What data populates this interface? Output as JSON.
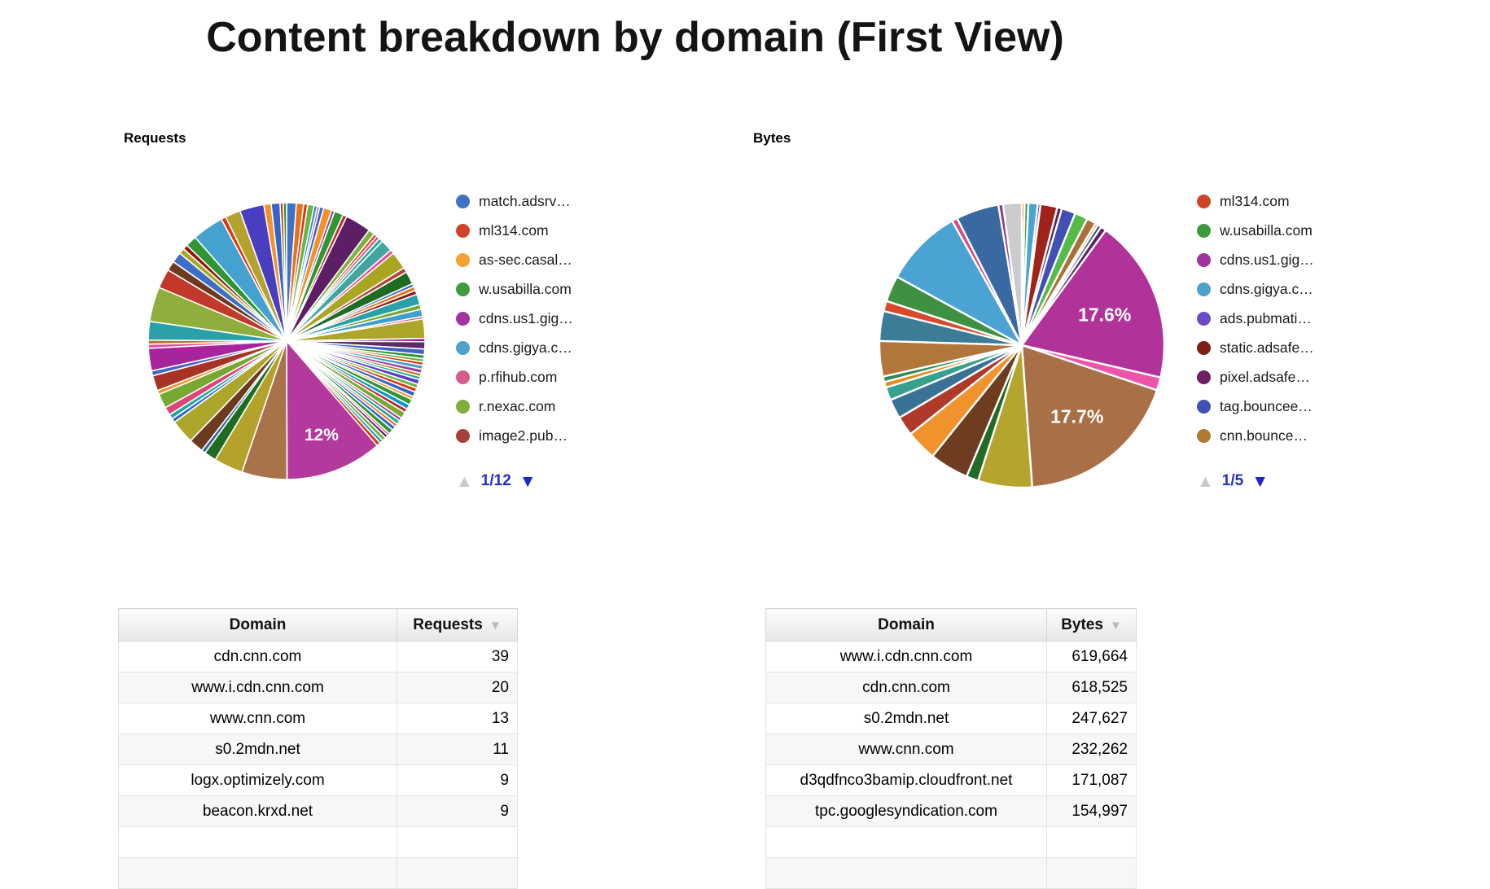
{
  "title": "Content breakdown by domain (First View)",
  "charts": {
    "requests": {
      "label": "Requests",
      "pagination": "1/12",
      "pager_up_icon": "▲",
      "pager_down_icon": "▼",
      "legend": [
        {
          "label": "match.adsrv…",
          "color": "#4171C6"
        },
        {
          "label": "ml314.com",
          "color": "#CF4425"
        },
        {
          "label": "as-sec.casal…",
          "color": "#F5A233"
        },
        {
          "label": "w.usabilla.com",
          "color": "#3D9A3D"
        },
        {
          "label": "cdns.us1.gig…",
          "color": "#A234A2"
        },
        {
          "label": "cdns.gigya.c…",
          "color": "#4BA3C9"
        },
        {
          "label": "p.rfihub.com",
          "color": "#D65D8B"
        },
        {
          "label": "r.nexac.com",
          "color": "#7FAE3C"
        },
        {
          "label": "image2.pub…",
          "color": "#A8403A"
        }
      ]
    },
    "bytes": {
      "label": "Bytes",
      "pagination": "1/5",
      "pager_up_icon": "▲",
      "pager_down_icon": "▼",
      "legend": [
        {
          "label": "ml314.com",
          "color": "#CF4425"
        },
        {
          "label": "w.usabilla.com",
          "color": "#3D9A3D"
        },
        {
          "label": "cdns.us1.gig…",
          "color": "#A234A2"
        },
        {
          "label": "cdns.gigya.c…",
          "color": "#4BA3C9"
        },
        {
          "label": "ads.pubmati…",
          "color": "#6A4BC8"
        },
        {
          "label": "static.adsafe…",
          "color": "#7E2012"
        },
        {
          "label": "pixel.adsafe…",
          "color": "#6B2163"
        },
        {
          "label": "tag.bouncee…",
          "color": "#4150B5"
        },
        {
          "label": "cnn.bounce…",
          "color": "#B07A32"
        }
      ]
    }
  },
  "chart_data": [
    {
      "type": "pie",
      "title": "Requests",
      "units": "percent of requests per domain (slice values approximate; labeled slice is 12%)",
      "legend_position": "right",
      "legend_page": "1/12",
      "legend_entries": [
        "match.adsrv…",
        "ml314.com",
        "as-sec.casal…",
        "w.usabilla.com",
        "cdns.us1.gig…",
        "cdns.gigya.c…",
        "p.rfihub.com",
        "r.nexac.com",
        "image2.pub…"
      ],
      "data_labels": [
        "12%"
      ],
      "slices": [
        [
          1.2,
          "#4171C6"
        ],
        [
          0.9,
          "#E8711A"
        ],
        [
          0.5,
          "#DC3912"
        ],
        [
          0.8,
          "#6DB33F"
        ],
        [
          0.4,
          "#0C95C8"
        ],
        [
          0.3,
          "#DD4477"
        ],
        [
          0.5,
          "#3366CC"
        ],
        [
          1.0,
          "#F59126"
        ],
        [
          0.4,
          "#994499"
        ],
        [
          1.1,
          "#2E9632"
        ],
        [
          0.5,
          "#B82E2E"
        ],
        [
          3.2,
          "#5C1F66"
        ],
        [
          0.8,
          "#7CB342"
        ],
        [
          0.4,
          "#DC3912"
        ],
        [
          0.4,
          "#DD4477"
        ],
        [
          0.5,
          "#22AA99"
        ],
        [
          1.5,
          "#43A5A0"
        ],
        [
          0.5,
          "#E84A9B"
        ],
        [
          2.2,
          "#ABA622"
        ],
        [
          0.6,
          "#B0443C"
        ],
        [
          1.6,
          "#1E6B24"
        ],
        [
          0.4,
          "#3366CC"
        ],
        [
          0.5,
          "#E8711A"
        ],
        [
          0.5,
          "#8B1A0D"
        ],
        [
          1.3,
          "#2AA1A8"
        ],
        [
          0.6,
          "#76A832"
        ],
        [
          0.9,
          "#3E9FCC"
        ],
        [
          0.3,
          "#DD4477"
        ],
        [
          2.4,
          "#ACA62B"
        ],
        [
          0.4,
          "#990099"
        ],
        [
          0.9,
          "#5C2A66"
        ],
        [
          0.7,
          "#3E62C4"
        ],
        [
          0.5,
          "#2E9632"
        ],
        [
          0.4,
          "#76A832"
        ],
        [
          0.4,
          "#DC3912"
        ],
        [
          0.5,
          "#3E9FCC"
        ],
        [
          0.5,
          "#994499"
        ],
        [
          0.4,
          "#B77322"
        ],
        [
          0.4,
          "#22AA99"
        ],
        [
          0.6,
          "#5A3EC8"
        ],
        [
          0.5,
          "#6DB33F"
        ],
        [
          0.5,
          "#DC3912"
        ],
        [
          0.6,
          "#3366CC"
        ],
        [
          0.4,
          "#F59126"
        ],
        [
          0.7,
          "#2E9632"
        ],
        [
          0.6,
          "#0C95C8"
        ],
        [
          0.5,
          "#B82E2E"
        ],
        [
          0.8,
          "#76A832"
        ],
        [
          0.4,
          "#994499"
        ],
        [
          0.5,
          "#22AA99"
        ],
        [
          0.4,
          "#E8711A"
        ],
        [
          0.5,
          "#3366CC"
        ],
        [
          0.6,
          "#2E9632"
        ],
        [
          0.3,
          "#DD4477"
        ],
        [
          0.4,
          "#5C1F66"
        ],
        [
          0.5,
          "#6DB33F"
        ],
        [
          0.4,
          "#0C95C8"
        ],
        [
          0.5,
          "#DC3912"
        ],
        [
          12.0,
          "#B3399C",
          "12%",
          0.72
        ],
        [
          5.6,
          "#A8724A"
        ],
        [
          3.6,
          "#B5A22C"
        ],
        [
          1.5,
          "#1E6B24"
        ],
        [
          0.5,
          "#336699"
        ],
        [
          1.8,
          "#6B3A1F"
        ],
        [
          3.0,
          "#ACA62B"
        ],
        [
          0.5,
          "#3366CC"
        ],
        [
          0.6,
          "#22AA99"
        ],
        [
          1.0,
          "#DD4477"
        ],
        [
          1.8,
          "#76A832"
        ],
        [
          0.5,
          "#F59126"
        ],
        [
          1.9,
          "#A93226"
        ],
        [
          0.6,
          "#3E62C4"
        ],
        [
          2.8,
          "#A8249C"
        ],
        [
          0.5,
          "#E84A9B"
        ],
        [
          0.5,
          "#B77322"
        ],
        [
          2.3,
          "#2AA1A8"
        ],
        [
          4.3,
          "#8FAE3C"
        ],
        [
          2.4,
          "#C0392B"
        ],
        [
          1.2,
          "#6B3A1F"
        ],
        [
          1.3,
          "#3E6FC4"
        ],
        [
          0.7,
          "#ABA622"
        ],
        [
          0.6,
          "#8B1A0D"
        ],
        [
          1.4,
          "#2E9632"
        ],
        [
          3.9,
          "#45A1CF"
        ],
        [
          0.6,
          "#DC3912"
        ],
        [
          1.9,
          "#B5A22C"
        ],
        [
          3.0,
          "#4A3EC0"
        ],
        [
          0.9,
          "#F59126"
        ],
        [
          1.1,
          "#3366CC"
        ],
        [
          0.4,
          "#DC3912"
        ],
        [
          0.4,
          "#2E9632"
        ]
      ]
    },
    {
      "type": "pie",
      "title": "Bytes",
      "units": "percent of bytes per domain (slice values approximate; labeled slices are 17.6% and 17.7%)",
      "legend_position": "right",
      "legend_page": "1/5",
      "legend_entries": [
        "ml314.com",
        "w.usabilla.com",
        "cdns.us1.gig…",
        "cdns.gigya.c…",
        "ads.pubmati…",
        "static.adsafe…",
        "pixel.adsafe…",
        "tag.bouncee…",
        "cnn.bounce…"
      ],
      "data_labels": [
        "17.6%",
        "17.7%"
      ],
      "slices": [
        [
          0.3,
          "#E8711A"
        ],
        [
          0.4,
          "#3D9A3D"
        ],
        [
          1.0,
          "#4BA3D3"
        ],
        [
          0.3,
          "#3B3EAC"
        ],
        [
          1.8,
          "#A0231A"
        ],
        [
          0.5,
          "#5C1F5C"
        ],
        [
          1.5,
          "#4150B5"
        ],
        [
          1.4,
          "#54BB46"
        ],
        [
          1.0,
          "#A9703A"
        ],
        [
          0.3,
          "#F59126"
        ],
        [
          0.4,
          "#2C4C8C"
        ],
        [
          0.6,
          "#5C1F66"
        ],
        [
          17.6,
          "#B13399",
          "17.6%",
          0.62
        ],
        [
          1.4,
          "#EE55A8"
        ],
        [
          17.7,
          "#A97048",
          "17.7%",
          0.63
        ],
        [
          5.8,
          "#B5A52F"
        ],
        [
          1.3,
          "#226B26"
        ],
        [
          4.2,
          "#6E3D20"
        ],
        [
          3.3,
          "#F0932C"
        ],
        [
          2.1,
          "#AF3A2A"
        ],
        [
          2.1,
          "#3A7296"
        ],
        [
          1.4,
          "#35A08B"
        ],
        [
          0.6,
          "#E8891A"
        ],
        [
          0.6,
          "#2E8B57"
        ],
        [
          3.8,
          "#B0763A"
        ],
        [
          3.2,
          "#3C7C96"
        ],
        [
          1.1,
          "#D94A2B"
        ],
        [
          2.8,
          "#3D9140"
        ],
        [
          8.4,
          "#4BA3D3"
        ],
        [
          0.6,
          "#D14A8C"
        ],
        [
          4.6,
          "#3A68A0"
        ],
        [
          0.5,
          "#8E3A8E"
        ],
        [
          2.0,
          "#CCCCCC"
        ]
      ]
    },
    {
      "type": "table",
      "title": "Requests by domain",
      "columns": [
        "Domain",
        "Requests"
      ],
      "sort_icon": "▼",
      "sorted_column": "Requests",
      "rows": [
        [
          "cdn.cnn.com",
          "39"
        ],
        [
          "www.i.cdn.cnn.com",
          "20"
        ],
        [
          "www.cnn.com",
          "13"
        ],
        [
          "s0.2mdn.net",
          "11"
        ],
        [
          "logx.optimizely.com",
          "9"
        ],
        [
          "beacon.krxd.net",
          "9"
        ]
      ]
    },
    {
      "type": "table",
      "title": "Bytes by domain",
      "columns": [
        "Domain",
        "Bytes"
      ],
      "sort_icon": "▼",
      "sorted_column": "Bytes",
      "rows": [
        [
          "www.i.cdn.cnn.com",
          "619,664"
        ],
        [
          "cdn.cnn.com",
          "618,525"
        ],
        [
          "s0.2mdn.net",
          "247,627"
        ],
        [
          "www.cnn.com",
          "232,262"
        ],
        [
          "d3qdfnco3bamip.cloudfront.net",
          "171,087"
        ],
        [
          "tpc.googlesyndication.com",
          "154,997"
        ]
      ]
    }
  ]
}
